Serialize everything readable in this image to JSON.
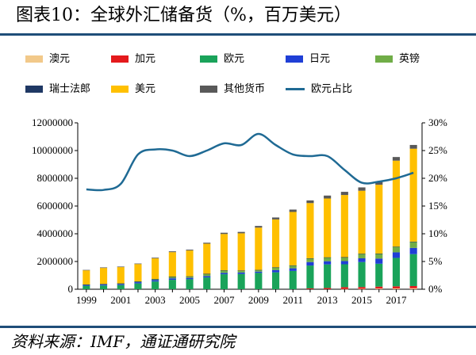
{
  "title": "图表10：全球外汇储备货（%，百万美元）",
  "source": "资料来源：IMF，通证通研究院",
  "chart_data": {
    "type": "bar",
    "stacked": true,
    "categories": [
      "1999",
      "2000",
      "2001",
      "2002",
      "2003",
      "2004",
      "2005",
      "2006",
      "2007",
      "2008",
      "2009",
      "2010",
      "2011",
      "2012",
      "2013",
      "2014",
      "2015",
      "2016",
      "2017",
      "2018"
    ],
    "x_tick_labels": [
      "1999",
      "2001",
      "2003",
      "2005",
      "2007",
      "2009",
      "2011",
      "2013",
      "2015",
      "2017"
    ],
    "y_left_ticks": [
      "0",
      "2000000",
      "4000000",
      "6000000",
      "8000000",
      "10000000",
      "12000000"
    ],
    "y_left_lim": [
      0,
      12000000
    ],
    "y_right_ticks": [
      "0%",
      "5%",
      "10%",
      "15%",
      "20%",
      "25%",
      "30%"
    ],
    "y_right_lim": [
      0,
      30
    ],
    "series": [
      {
        "name": "澳元",
        "color": "#f2c98a",
        "values": [
          0,
          0,
          0,
          0,
          0,
          0,
          0,
          0,
          0,
          0,
          0,
          0,
          0,
          0,
          0,
          20000,
          30000,
          50000,
          60000,
          70000
        ]
      },
      {
        "name": "加元",
        "color": "#e41a1c",
        "values": [
          0,
          0,
          0,
          0,
          0,
          0,
          0,
          0,
          0,
          0,
          0,
          0,
          0,
          60000,
          90000,
          130000,
          130000,
          140000,
          150000,
          160000
        ]
      },
      {
        "name": "欧元",
        "color": "#1aa35a",
        "values": [
          250000,
          270000,
          300000,
          420000,
          560000,
          680000,
          720000,
          850000,
          1080000,
          1100000,
          1180000,
          1220000,
          1320000,
          1650000,
          1700000,
          1650000,
          1800000,
          1650000,
          2050000,
          2300000
        ]
      },
      {
        "name": "日元",
        "color": "#1f3fd6",
        "values": [
          60000,
          70000,
          70000,
          90000,
          100000,
          110000,
          100000,
          100000,
          100000,
          110000,
          90000,
          160000,
          190000,
          250000,
          230000,
          230000,
          270000,
          370000,
          400000,
          450000
        ]
      },
      {
        "name": "英镑",
        "color": "#70ad47",
        "values": [
          30000,
          40000,
          50000,
          60000,
          80000,
          120000,
          110000,
          160000,
          180000,
          140000,
          120000,
          200000,
          210000,
          270000,
          280000,
          280000,
          330000,
          360000,
          410000,
          450000
        ]
      },
      {
        "name": "瑞士法郎",
        "color": "#1f3864",
        "values": [
          3000,
          4000,
          4000,
          4000,
          4000,
          4000,
          4000,
          4000,
          4000,
          4000,
          4000,
          4000,
          4000,
          4000,
          4000,
          4000,
          4000,
          4000,
          4000,
          4000
        ]
      },
      {
        "name": "美元",
        "color": "#ffc000",
        "values": [
          1020000,
          1150000,
          1170000,
          1240000,
          1480000,
          1760000,
          1860000,
          2170000,
          2620000,
          2680000,
          3050000,
          3450000,
          3850000,
          3980000,
          4240000,
          4480000,
          4540000,
          4960000,
          6200000,
          6700000
        ]
      },
      {
        "name": "其他货币",
        "color": "#595959",
        "values": [
          30000,
          40000,
          40000,
          40000,
          50000,
          60000,
          60000,
          70000,
          90000,
          100000,
          120000,
          140000,
          170000,
          190000,
          210000,
          230000,
          240000,
          250000,
          260000,
          270000
        ]
      }
    ],
    "line_series": {
      "name": "欧元占比",
      "color": "#1f6a94",
      "axis": "right",
      "values": [
        18.0,
        17.9,
        19.0,
        24.3,
        25.2,
        25.0,
        24.0,
        25.0,
        26.3,
        26.0,
        28.0,
        26.0,
        24.3,
        24.0,
        24.0,
        21.5,
        19.2,
        19.4,
        20.0,
        21.0
      ]
    },
    "legend_position": "top",
    "grid": false
  }
}
